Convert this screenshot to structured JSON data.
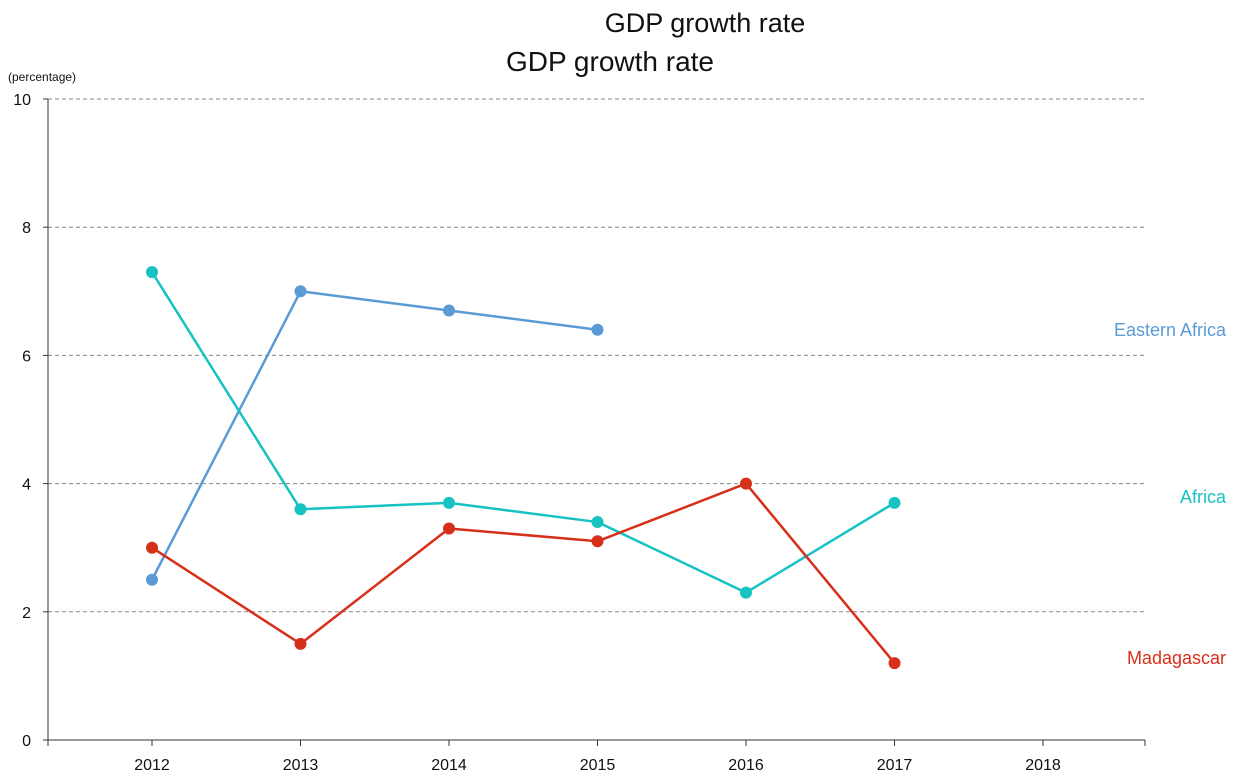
{
  "chart_data": {
    "type": "line",
    "title_top": "GDP growth rate",
    "title": "GDP growth rate",
    "ylabel": "(percentage)",
    "xlabel": "",
    "x": [
      2012,
      2013,
      2014,
      2015,
      2016,
      2017,
      2018
    ],
    "ylim": [
      0,
      10
    ],
    "yticks": [
      0,
      2,
      4,
      6,
      8,
      10
    ],
    "grid": true,
    "series": [
      {
        "name": "Eastern Africa",
        "color": "#5b9bd5",
        "points": [
          [
            2012,
            2.5
          ],
          [
            2013,
            7.0
          ],
          [
            2014,
            6.7
          ],
          [
            2015,
            6.4
          ]
        ]
      },
      {
        "name": "Africa",
        "color": "#16c2c2",
        "points": [
          [
            2012,
            7.3
          ],
          [
            2013,
            3.6
          ],
          [
            2014,
            3.7
          ],
          [
            2015,
            3.4
          ],
          [
            2016,
            2.3
          ],
          [
            2017,
            3.7
          ]
        ]
      },
      {
        "name": "Madagascar",
        "color": "#d6301a",
        "points": [
          [
            2012,
            3.0
          ],
          [
            2013,
            1.5
          ],
          [
            2014,
            3.3
          ],
          [
            2015,
            3.1
          ],
          [
            2016,
            4.0
          ],
          [
            2017,
            1.2
          ]
        ]
      }
    ]
  }
}
